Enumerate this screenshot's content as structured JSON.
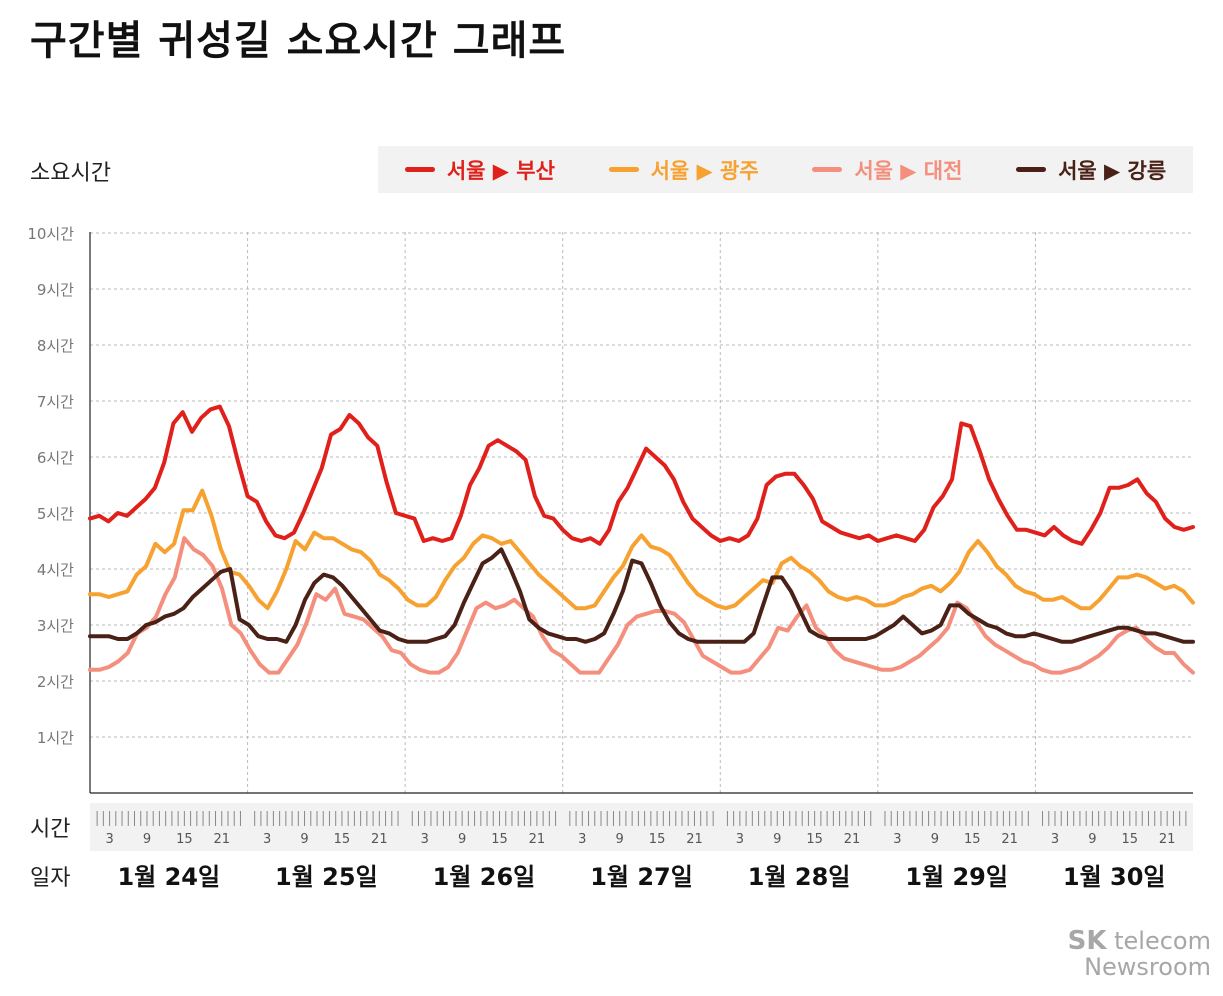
{
  "title": "구간별 귀성길 소요시간 그래프",
  "brand": {
    "line1_bold": "SK",
    "line1_rest": "telecom",
    "line2": "Newsroom"
  },
  "chart_data": {
    "type": "line",
    "ylabel": "소요시간",
    "y_tick_labels": [
      "1시간",
      "2시간",
      "3시간",
      "4시간",
      "5시간",
      "6시간",
      "7시간",
      "8시간",
      "9시간",
      "10시간"
    ],
    "y_ticks": [
      1,
      2,
      3,
      4,
      5,
      6,
      7,
      8,
      9,
      10
    ],
    "ylim": [
      0,
      10.3
    ],
    "hour_row_label": "시간",
    "hour_tick_labels": [
      "3",
      "9",
      "15",
      "21"
    ],
    "hour_ticks": [
      3,
      9,
      15,
      21
    ],
    "date_row_label": "일자",
    "days": [
      "1월 24일",
      "1월 25일",
      "1월 26일",
      "1월 27일",
      "1월 28일",
      "1월 29일",
      "1월 30일"
    ],
    "x_unit_note": "hours, ~2h sampling, days 24–30",
    "grid": true,
    "legend_position": "top",
    "series": [
      {
        "name": "서울 ▶ 부산",
        "color": "#e0201b",
        "values": [
          4.9,
          4.95,
          4.85,
          5.0,
          4.95,
          5.1,
          5.25,
          5.45,
          5.9,
          6.6,
          6.8,
          6.45,
          6.7,
          6.85,
          6.9,
          6.55,
          5.9,
          5.3,
          5.2,
          4.85,
          4.6,
          4.55,
          4.65,
          5.0,
          5.4,
          5.8,
          6.4,
          6.5,
          6.75,
          6.6,
          6.35,
          6.2,
          5.55,
          5.0,
          4.95,
          4.9,
          4.5,
          4.55,
          4.5,
          4.55,
          4.95,
          5.5,
          5.8,
          6.2,
          6.3,
          6.2,
          6.1,
          5.95,
          5.3,
          4.95,
          4.9,
          4.7,
          4.55,
          4.5,
          4.55,
          4.45,
          4.7,
          5.2,
          5.45,
          5.8,
          6.15,
          6.0,
          5.85,
          5.6,
          5.2,
          4.9,
          4.75,
          4.6,
          4.5,
          4.55,
          4.5,
          4.6,
          4.9,
          5.5,
          5.65,
          5.7,
          5.7,
          5.5,
          5.25,
          4.85,
          4.75,
          4.65,
          4.6,
          4.55,
          4.6,
          4.5,
          4.55,
          4.6,
          4.55,
          4.5,
          4.7,
          5.1,
          5.3,
          5.6,
          6.6,
          6.55,
          6.1,
          5.6,
          5.25,
          4.95,
          4.7,
          4.7,
          4.65,
          4.6,
          4.75,
          4.6,
          4.5,
          4.45,
          4.7,
          5.0,
          5.45,
          5.45,
          5.5,
          5.6,
          5.35,
          5.2,
          4.9,
          4.75,
          4.7,
          4.75
        ]
      },
      {
        "name": "서울 ▶ 광주",
        "color": "#f7a131",
        "values": [
          3.55,
          3.55,
          3.5,
          3.55,
          3.6,
          3.9,
          4.05,
          4.45,
          4.3,
          4.45,
          5.05,
          5.05,
          5.4,
          4.95,
          4.35,
          3.95,
          3.9,
          3.7,
          3.45,
          3.3,
          3.6,
          4.0,
          4.5,
          4.35,
          4.65,
          4.55,
          4.55,
          4.45,
          4.35,
          4.3,
          4.15,
          3.9,
          3.8,
          3.65,
          3.45,
          3.35,
          3.35,
          3.5,
          3.8,
          4.05,
          4.2,
          4.45,
          4.6,
          4.55,
          4.45,
          4.5,
          4.3,
          4.1,
          3.9,
          3.75,
          3.6,
          3.45,
          3.3,
          3.3,
          3.35,
          3.6,
          3.85,
          4.05,
          4.4,
          4.6,
          4.4,
          4.35,
          4.25,
          4.0,
          3.75,
          3.55,
          3.45,
          3.35,
          3.3,
          3.35,
          3.5,
          3.65,
          3.8,
          3.75,
          4.1,
          4.2,
          4.05,
          3.95,
          3.8,
          3.6,
          3.5,
          3.45,
          3.5,
          3.45,
          3.35,
          3.35,
          3.4,
          3.5,
          3.55,
          3.65,
          3.7,
          3.6,
          3.75,
          3.95,
          4.3,
          4.5,
          4.3,
          4.05,
          3.9,
          3.7,
          3.6,
          3.55,
          3.45,
          3.45,
          3.5,
          3.4,
          3.3,
          3.3,
          3.45,
          3.65,
          3.85,
          3.85,
          3.9,
          3.85,
          3.75,
          3.65,
          3.7,
          3.6,
          3.4
        ]
      },
      {
        "name": "서울 ▶ 대전",
        "color": "#f58f7d",
        "values": [
          2.2,
          2.2,
          2.25,
          2.35,
          2.5,
          2.85,
          2.95,
          3.15,
          3.55,
          3.85,
          4.55,
          4.35,
          4.25,
          4.05,
          3.65,
          3.0,
          2.85,
          2.55,
          2.3,
          2.15,
          2.15,
          2.4,
          2.65,
          3.05,
          3.55,
          3.45,
          3.65,
          3.2,
          3.15,
          3.1,
          2.95,
          2.8,
          2.55,
          2.5,
          2.3,
          2.2,
          2.15,
          2.15,
          2.25,
          2.5,
          2.9,
          3.3,
          3.4,
          3.3,
          3.35,
          3.45,
          3.3,
          3.15,
          2.8,
          2.55,
          2.45,
          2.3,
          2.15,
          2.15,
          2.15,
          2.4,
          2.65,
          3.0,
          3.15,
          3.2,
          3.25,
          3.25,
          3.2,
          3.05,
          2.75,
          2.45,
          2.35,
          2.25,
          2.15,
          2.15,
          2.2,
          2.4,
          2.6,
          2.95,
          2.9,
          3.15,
          3.35,
          2.95,
          2.8,
          2.55,
          2.4,
          2.35,
          2.3,
          2.25,
          2.2,
          2.2,
          2.25,
          2.35,
          2.45,
          2.6,
          2.75,
          2.95,
          3.4,
          3.3,
          3.05,
          2.8,
          2.65,
          2.55,
          2.45,
          2.35,
          2.3,
          2.2,
          2.15,
          2.15,
          2.2,
          2.25,
          2.35,
          2.45,
          2.6,
          2.8,
          2.9,
          2.95,
          2.75,
          2.6,
          2.5,
          2.5,
          2.3,
          2.15
        ]
      },
      {
        "name": "서울 ▶ 강릉",
        "color": "#4a2116",
        "values": [
          2.8,
          2.8,
          2.8,
          2.75,
          2.75,
          2.85,
          3.0,
          3.05,
          3.15,
          3.2,
          3.3,
          3.5,
          3.65,
          3.8,
          3.95,
          4.0,
          3.1,
          3.0,
          2.8,
          2.75,
          2.75,
          2.7,
          3.0,
          3.45,
          3.75,
          3.9,
          3.85,
          3.7,
          3.5,
          3.3,
          3.1,
          2.9,
          2.85,
          2.75,
          2.7,
          2.7,
          2.7,
          2.75,
          2.8,
          3.0,
          3.4,
          3.75,
          4.1,
          4.2,
          4.35,
          4.0,
          3.6,
          3.1,
          2.95,
          2.85,
          2.8,
          2.75,
          2.75,
          2.7,
          2.75,
          2.85,
          3.2,
          3.6,
          4.15,
          4.1,
          3.75,
          3.35,
          3.05,
          2.85,
          2.75,
          2.7,
          2.7,
          2.7,
          2.7,
          2.7,
          2.7,
          2.85,
          3.35,
          3.85,
          3.85,
          3.6,
          3.25,
          2.9,
          2.8,
          2.75,
          2.75,
          2.75,
          2.75,
          2.75,
          2.8,
          2.9,
          3.0,
          3.15,
          3.0,
          2.85,
          2.9,
          3.0,
          3.35,
          3.35,
          3.2,
          3.1,
          3.0,
          2.95,
          2.85,
          2.8,
          2.8,
          2.85,
          2.8,
          2.75,
          2.7,
          2.7,
          2.75,
          2.8,
          2.85,
          2.9,
          2.95,
          2.95,
          2.9,
          2.85,
          2.85,
          2.8,
          2.75,
          2.7,
          2.7
        ]
      }
    ]
  }
}
